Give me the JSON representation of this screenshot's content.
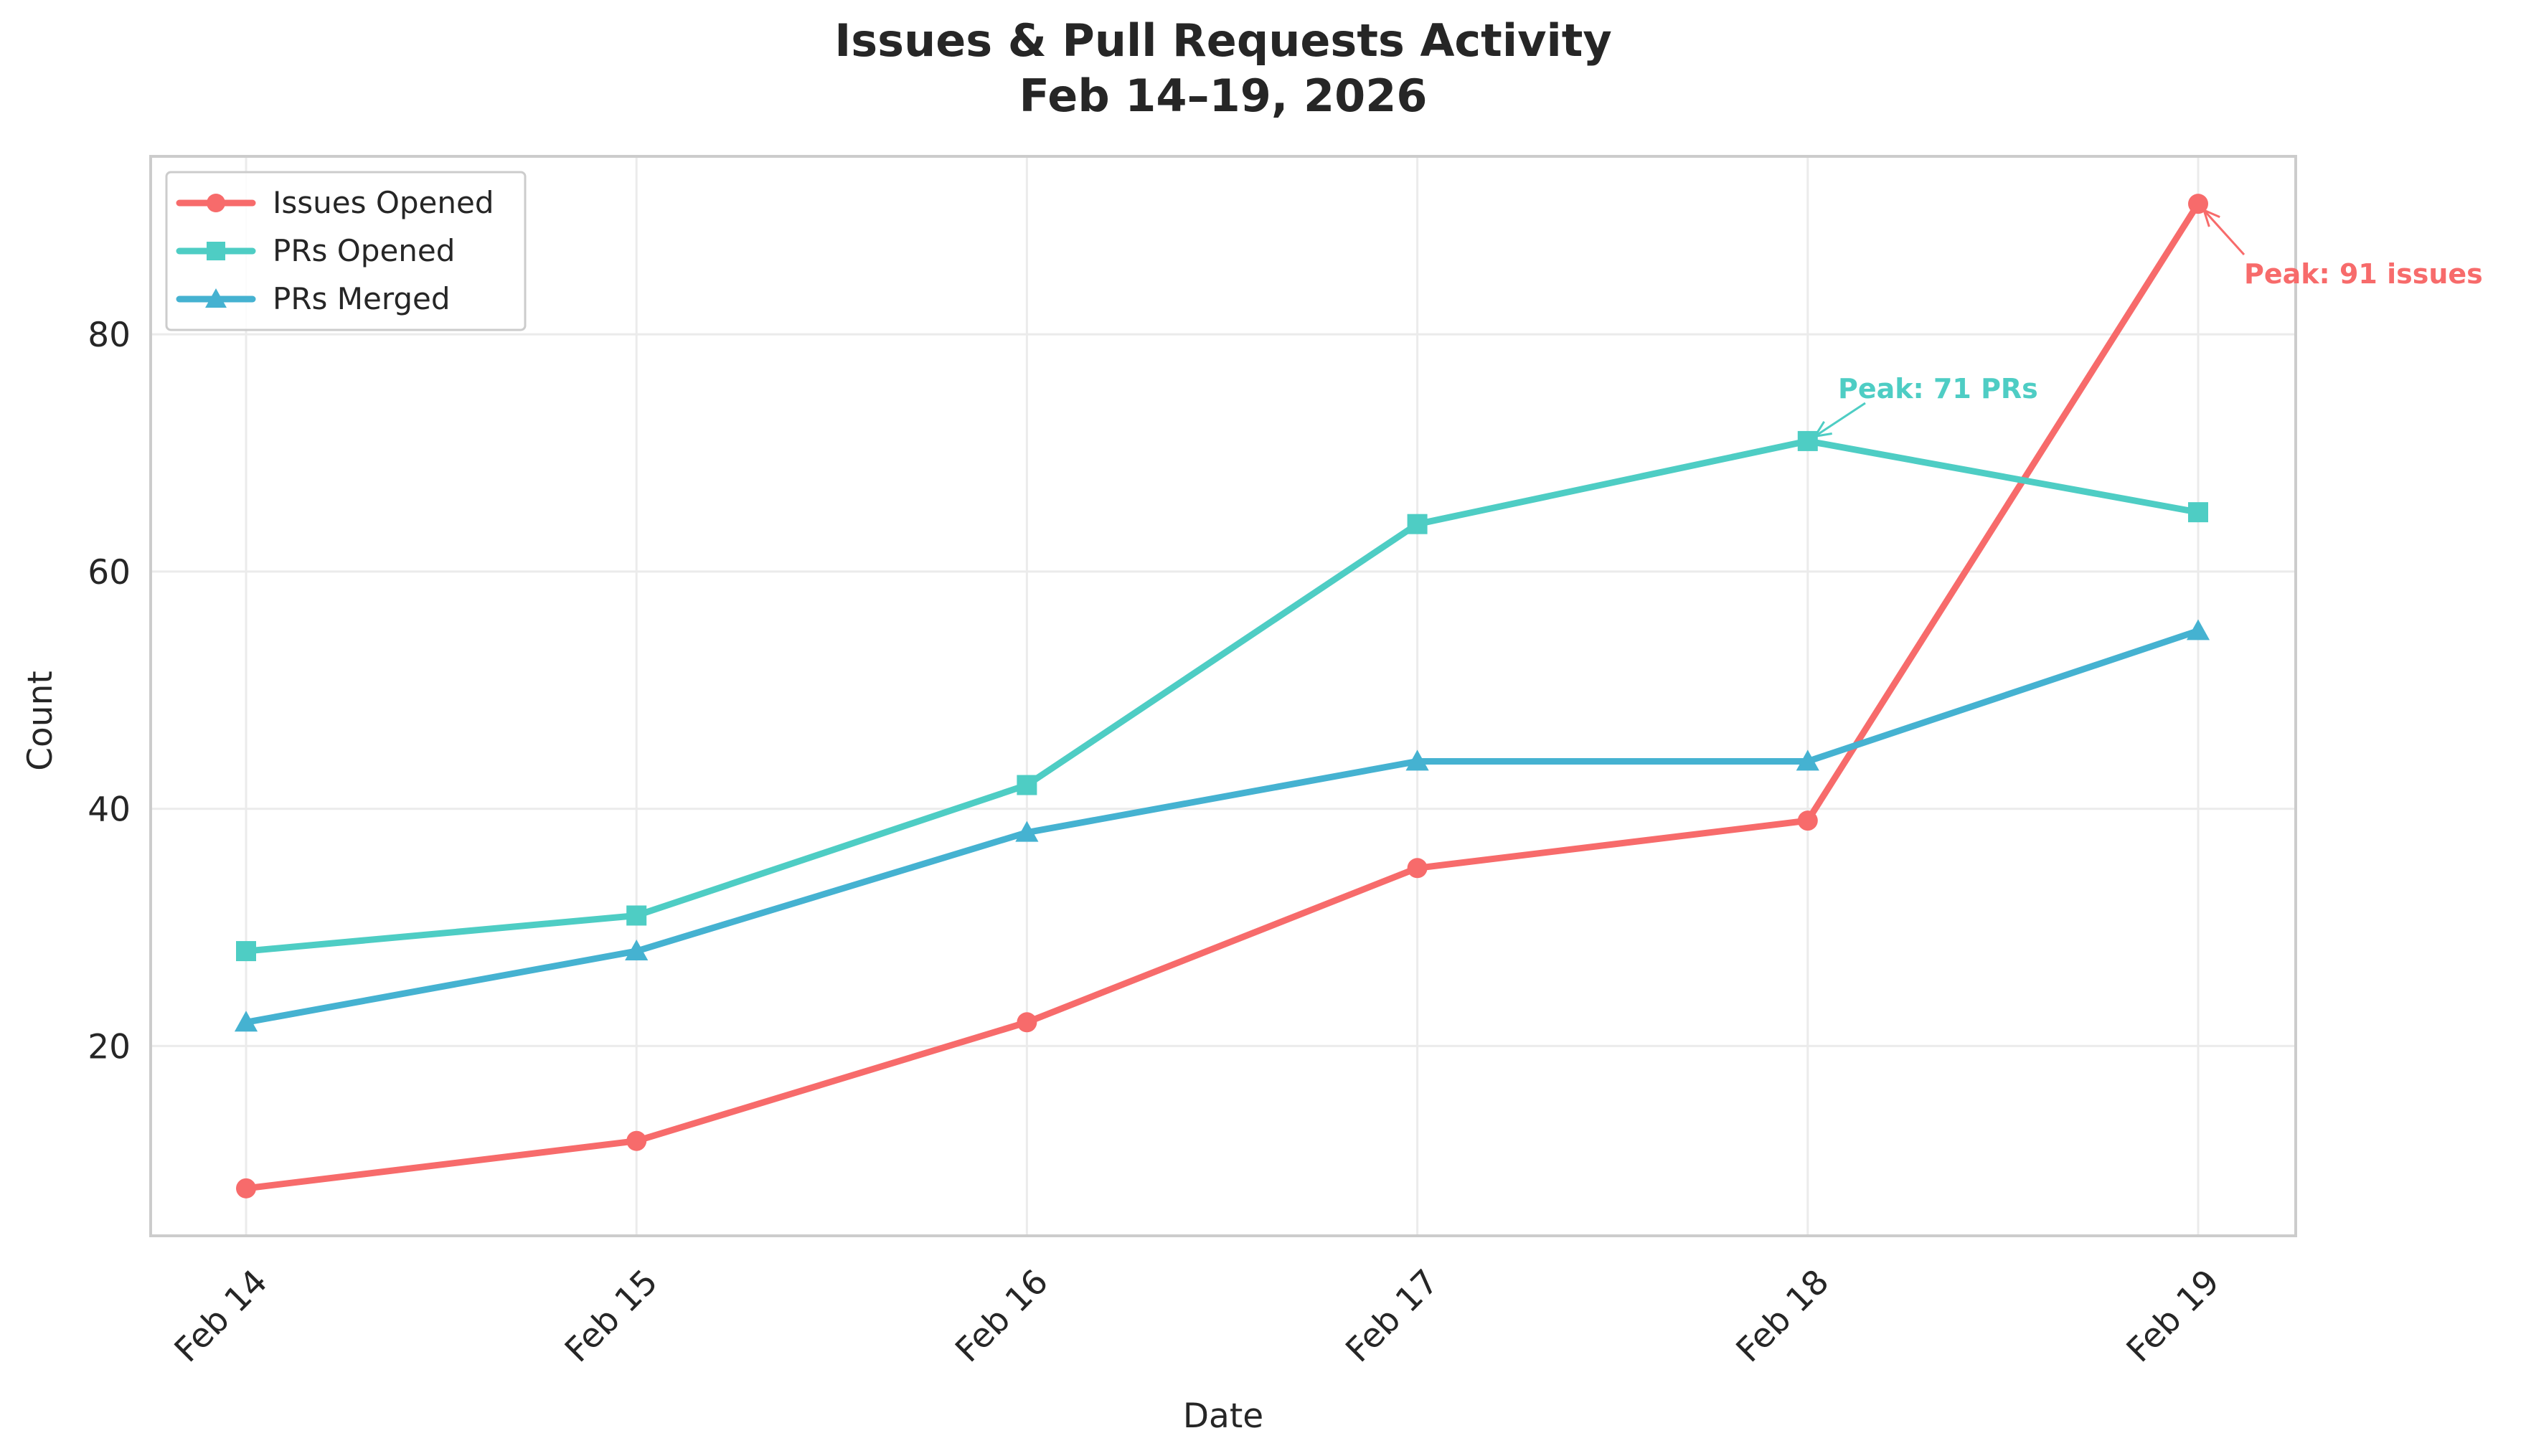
{
  "chart_data": {
    "type": "line",
    "title_lines": [
      "Issues & Pull Requests Activity",
      "Feb 14–19, 2026"
    ],
    "xlabel": "Date",
    "ylabel": "Count",
    "categories": [
      "Feb 14",
      "Feb 15",
      "Feb 16",
      "Feb 17",
      "Feb 18",
      "Feb 19"
    ],
    "ylim": [
      4,
      95
    ],
    "yticks": [
      20,
      40,
      60,
      80
    ],
    "grid": true,
    "legend_position": "top-left",
    "series": [
      {
        "name": "Issues Opened",
        "color": "#f76b6b",
        "marker": "circle",
        "values": [
          8,
          12,
          22,
          35,
          39,
          91
        ]
      },
      {
        "name": "PRs Opened",
        "color": "#4ecdc4",
        "marker": "square",
        "values": [
          28,
          31,
          42,
          64,
          71,
          65
        ]
      },
      {
        "name": "PRs Merged",
        "color": "#45b2d1",
        "marker": "triangle",
        "values": [
          22,
          28,
          38,
          44,
          44,
          55
        ]
      }
    ],
    "annotations": [
      {
        "text": "Peak: 91 issues",
        "series": 0,
        "point": 5,
        "color": "#f76b6b"
      },
      {
        "text": "Peak: 71 PRs",
        "series": 1,
        "point": 4,
        "color": "#4ecdc4"
      }
    ]
  }
}
